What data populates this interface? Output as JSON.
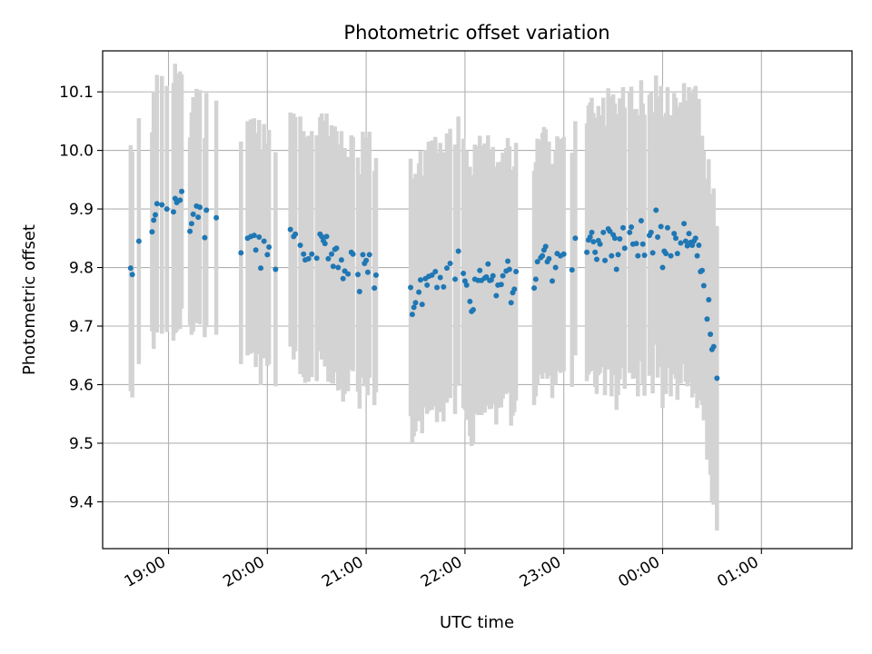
{
  "chart_data": {
    "type": "scatter",
    "title": "Photometric offset variation",
    "xlabel": "UTC time",
    "ylabel": "Photometric offset",
    "x_tick_labels": [
      "19:00",
      "20:00",
      "21:00",
      "22:00",
      "23:00",
      "00:00",
      "01:00"
    ],
    "y_tick_labels": [
      "9.4",
      "9.5",
      "9.6",
      "9.7",
      "9.8",
      "9.9",
      "10.0",
      "10.1"
    ],
    "ylim": [
      9.32,
      10.17
    ],
    "xlim": [
      "18:20",
      "01:55"
    ],
    "grid": true,
    "colors": {
      "points": "#1f77b4",
      "error_bars": "#d3d3d3",
      "grid": "#b0b0b0"
    },
    "series": [
      {
        "points": [
          [
            "18:37",
            9.799,
            0.21
          ],
          [
            "18:38",
            9.788,
            0.21
          ],
          [
            "18:42",
            9.845,
            0.21
          ],
          [
            "18:50",
            9.861,
            0.17
          ],
          [
            "18:51",
            9.881,
            0.22
          ],
          [
            "18:52",
            9.89,
            0.2
          ],
          [
            "18:53",
            9.909,
            0.22
          ],
          [
            "18:56",
            9.907,
            0.22
          ],
          [
            "18:59",
            9.9,
            0.21
          ],
          [
            "19:03",
            9.895,
            0.22
          ],
          [
            "19:04",
            9.918,
            0.23
          ],
          [
            "19:05",
            9.911,
            0.22
          ],
          [
            "19:07",
            9.915,
            0.22
          ],
          [
            "19:08",
            9.93,
            0.2
          ],
          [
            "19:13",
            9.862,
            0.16
          ],
          [
            "19:14",
            9.875,
            0.19
          ],
          [
            "19:15",
            9.891,
            0.2
          ],
          [
            "19:17",
            9.905,
            0.2
          ],
          [
            "19:18",
            9.886,
            0.17
          ],
          [
            "19:19",
            9.903,
            0.2
          ],
          [
            "19:22",
            9.851,
            0.17
          ],
          [
            "19:23",
            9.898,
            0.2
          ],
          [
            "19:29",
            9.885,
            0.2
          ],
          [
            "19:44",
            9.825,
            0.19
          ],
          [
            "19:48",
            9.85,
            0.2
          ],
          [
            "19:50",
            9.853,
            0.2
          ],
          [
            "19:52",
            9.855,
            0.2
          ],
          [
            "19:53",
            9.83,
            0.2
          ],
          [
            "19:55",
            9.852,
            0.2
          ],
          [
            "19:56",
            9.799,
            0.2
          ],
          [
            "19:58",
            9.845,
            0.2
          ],
          [
            "20:00",
            9.822,
            0.19
          ],
          [
            "20:01",
            9.835,
            0.2
          ],
          [
            "20:05",
            9.797,
            0.2
          ],
          [
            "20:14",
            9.865,
            0.2
          ],
          [
            "20:16",
            9.853,
            0.21
          ],
          [
            "20:17",
            9.857,
            0.2
          ],
          [
            "20:20",
            9.838,
            0.22
          ],
          [
            "20:22",
            9.823,
            0.21
          ],
          [
            "20:23",
            9.813,
            0.21
          ],
          [
            "20:25",
            9.815,
            0.21
          ],
          [
            "20:27",
            9.823,
            0.21
          ],
          [
            "20:30",
            9.816,
            0.21
          ],
          [
            "20:32",
            9.857,
            0.2
          ],
          [
            "20:33",
            9.853,
            0.21
          ],
          [
            "20:34",
            9.846,
            0.2
          ],
          [
            "20:35",
            9.841,
            0.21
          ],
          [
            "20:36",
            9.853,
            0.21
          ],
          [
            "20:37",
            9.815,
            0.21
          ],
          [
            "20:39",
            9.823,
            0.22
          ],
          [
            "20:40",
            9.802,
            0.2
          ],
          [
            "20:41",
            9.831,
            0.21
          ],
          [
            "20:42",
            9.833,
            0.2
          ],
          [
            "20:43",
            9.8,
            0.21
          ],
          [
            "20:45",
            9.813,
            0.22
          ],
          [
            "20:46",
            9.781,
            0.21
          ],
          [
            "20:47",
            9.794,
            0.21
          ],
          [
            "20:49",
            9.789,
            0.2
          ],
          [
            "20:51",
            9.826,
            0.2
          ],
          [
            "20:52",
            9.823,
            0.2
          ],
          [
            "20:55",
            9.788,
            0.2
          ],
          [
            "20:56",
            9.759,
            0.2
          ],
          [
            "20:58",
            9.822,
            0.21
          ],
          [
            "20:59",
            9.807,
            0.21
          ],
          [
            "21:00",
            9.812,
            0.21
          ],
          [
            "21:01",
            9.792,
            0.21
          ],
          [
            "21:02",
            9.822,
            0.21
          ],
          [
            "21:05",
            9.765,
            0.2
          ],
          [
            "21:06",
            9.787,
            0.2
          ],
          [
            "21:27",
            9.766,
            0.22
          ],
          [
            "21:28",
            9.72,
            0.22
          ],
          [
            "21:29",
            9.732,
            0.22
          ],
          [
            "21:30",
            9.74,
            0.22
          ],
          [
            "21:32",
            9.758,
            0.22
          ],
          [
            "21:33",
            9.779,
            0.22
          ],
          [
            "21:34",
            9.737,
            0.22
          ],
          [
            "21:36",
            9.781,
            0.22
          ],
          [
            "21:37",
            9.77,
            0.22
          ],
          [
            "21:38",
            9.785,
            0.23
          ],
          [
            "21:40",
            9.787,
            0.23
          ],
          [
            "21:42",
            9.793,
            0.23
          ],
          [
            "21:43",
            9.766,
            0.23
          ],
          [
            "21:45",
            9.783,
            0.23
          ],
          [
            "21:47",
            9.767,
            0.23
          ],
          [
            "21:49",
            9.799,
            0.23
          ],
          [
            "21:51",
            9.807,
            0.23
          ],
          [
            "21:54",
            9.78,
            0.23
          ],
          [
            "21:56",
            9.828,
            0.23
          ],
          [
            "21:59",
            9.79,
            0.23
          ],
          [
            "22:00",
            9.777,
            0.22
          ],
          [
            "22:01",
            9.77,
            0.23
          ],
          [
            "22:03",
            9.742,
            0.23
          ],
          [
            "22:04",
            9.725,
            0.23
          ],
          [
            "22:05",
            9.728,
            0.23
          ],
          [
            "22:06",
            9.78,
            0.23
          ],
          [
            "22:08",
            9.778,
            0.23
          ],
          [
            "22:09",
            9.795,
            0.23
          ],
          [
            "22:10",
            9.778,
            0.23
          ],
          [
            "22:12",
            9.782,
            0.23
          ],
          [
            "22:13",
            9.784,
            0.22
          ],
          [
            "22:14",
            9.806,
            0.22
          ],
          [
            "22:15",
            9.778,
            0.22
          ],
          [
            "22:16",
            9.779,
            0.22
          ],
          [
            "22:17",
            9.786,
            0.22
          ],
          [
            "22:19",
            9.752,
            0.22
          ],
          [
            "22:20",
            9.77,
            0.21
          ],
          [
            "22:22",
            9.771,
            0.21
          ],
          [
            "22:23",
            9.786,
            0.21
          ],
          [
            "22:25",
            9.794,
            0.21
          ],
          [
            "22:26",
            9.811,
            0.21
          ],
          [
            "22:27",
            9.797,
            0.21
          ],
          [
            "22:28",
            9.74,
            0.21
          ],
          [
            "22:29",
            9.757,
            0.21
          ],
          [
            "22:30",
            9.763,
            0.21
          ],
          [
            "22:31",
            9.793,
            0.22
          ],
          [
            "22:42",
            9.765,
            0.2
          ],
          [
            "22:43",
            9.78,
            0.2
          ],
          [
            "22:44",
            9.81,
            0.21
          ],
          [
            "22:46",
            9.817,
            0.2
          ],
          [
            "22:47",
            9.82,
            0.21
          ],
          [
            "22:48",
            9.83,
            0.21
          ],
          [
            "22:49",
            9.836,
            0.2
          ],
          [
            "22:50",
            9.81,
            0.2
          ],
          [
            "22:51",
            9.815,
            0.2
          ],
          [
            "22:53",
            9.777,
            0.2
          ],
          [
            "22:55",
            9.8,
            0.2
          ],
          [
            "22:56",
            9.824,
            0.2
          ],
          [
            "22:58",
            9.82,
            0.2
          ],
          [
            "23:00",
            9.823,
            0.2
          ],
          [
            "23:05",
            9.796,
            0.2
          ],
          [
            "23:07",
            9.85,
            0.2
          ],
          [
            "23:14",
            9.826,
            0.22
          ],
          [
            "23:15",
            9.847,
            0.23
          ],
          [
            "23:16",
            9.852,
            0.23
          ],
          [
            "23:17",
            9.86,
            0.23
          ],
          [
            "23:18",
            9.844,
            0.22
          ],
          [
            "23:19",
            9.826,
            0.23
          ],
          [
            "23:20",
            9.814,
            0.23
          ],
          [
            "23:21",
            9.846,
            0.23
          ],
          [
            "23:22",
            9.84,
            0.22
          ],
          [
            "23:24",
            9.86,
            0.23
          ],
          [
            "23:25",
            9.812,
            0.23
          ],
          [
            "23:27",
            9.866,
            0.24
          ],
          [
            "23:28",
            9.862,
            0.23
          ],
          [
            "23:29",
            9.82,
            0.24
          ],
          [
            "23:30",
            9.856,
            0.24
          ],
          [
            "23:31",
            9.85,
            0.23
          ],
          [
            "23:32",
            9.797,
            0.24
          ],
          [
            "23:33",
            9.822,
            0.24
          ],
          [
            "23:34",
            9.849,
            0.24
          ],
          [
            "23:36",
            9.868,
            0.24
          ],
          [
            "23:37",
            9.833,
            0.24
          ],
          [
            "23:40",
            9.86,
            0.24
          ],
          [
            "23:41",
            9.869,
            0.24
          ],
          [
            "23:42",
            9.84,
            0.23
          ],
          [
            "23:44",
            9.841,
            0.23
          ],
          [
            "23:45",
            9.82,
            0.24
          ],
          [
            "23:47",
            9.88,
            0.24
          ],
          [
            "23:48",
            9.84,
            0.24
          ],
          [
            "23:49",
            9.821,
            0.24
          ],
          [
            "23:52",
            9.855,
            0.24
          ],
          [
            "23:53",
            9.86,
            0.24
          ],
          [
            "23:54",
            9.825,
            0.24
          ],
          [
            "23:56",
            9.898,
            0.23
          ],
          [
            "23:57",
            9.852,
            0.24
          ],
          [
            "23:59",
            9.87,
            0.24
          ],
          [
            "00:00",
            9.8,
            0.24
          ],
          [
            "00:01",
            9.828,
            0.23
          ],
          [
            "00:02",
            9.824,
            0.24
          ],
          [
            "00:03",
            9.868,
            0.24
          ],
          [
            "00:05",
            9.82,
            0.24
          ],
          [
            "00:07",
            9.858,
            0.24
          ],
          [
            "00:08",
            9.85,
            0.24
          ],
          [
            "00:09",
            9.824,
            0.25
          ],
          [
            "00:11",
            9.842,
            0.24
          ],
          [
            "00:13",
            9.875,
            0.24
          ],
          [
            "00:14",
            9.845,
            0.24
          ],
          [
            "00:15",
            9.837,
            0.24
          ],
          [
            "00:16",
            9.858,
            0.25
          ],
          [
            "00:17",
            9.843,
            0.24
          ],
          [
            "00:18",
            9.838,
            0.26
          ],
          [
            "00:19",
            9.845,
            0.26
          ],
          [
            "00:20",
            9.85,
            0.26
          ],
          [
            "00:21",
            9.82,
            0.26
          ],
          [
            "00:22",
            9.838,
            0.25
          ],
          [
            "00:23",
            9.793,
            0.22
          ],
          [
            "00:24",
            9.795,
            0.23
          ],
          [
            "00:25",
            9.769,
            0.23
          ],
          [
            "00:27",
            9.712,
            0.24
          ],
          [
            "00:28",
            9.745,
            0.24
          ],
          [
            "00:29",
            9.686,
            0.24
          ],
          [
            "00:30",
            9.66,
            0.26
          ],
          [
            "00:31",
            9.665,
            0.27
          ],
          [
            "00:33",
            9.611,
            0.26
          ]
        ]
      }
    ]
  }
}
